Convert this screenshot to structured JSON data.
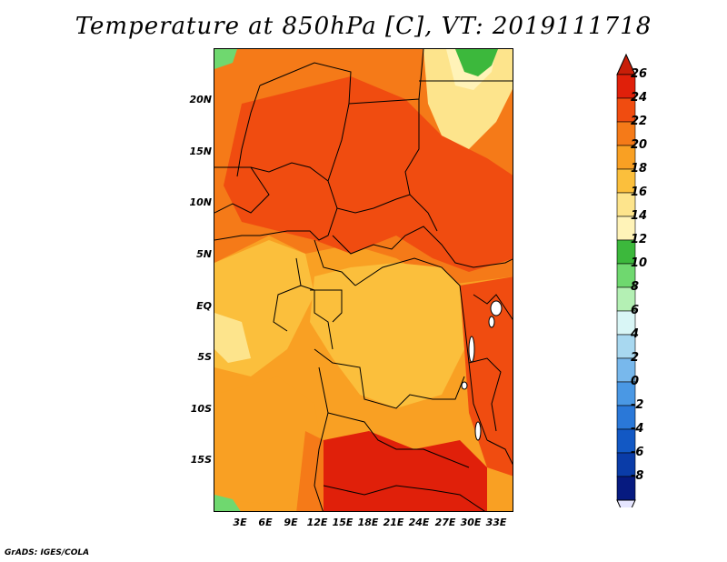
{
  "title": "Temperature at 850hPa [C], VT: 2019111718",
  "credit": "GrADS: IGES/COLA",
  "lat_labels": [
    "20N",
    "15N",
    "10N",
    "5N",
    "EQ",
    "5S",
    "10S",
    "15S"
  ],
  "lon_labels": [
    "3E",
    "6E",
    "9E",
    "12E",
    "15E",
    "18E",
    "21E",
    "24E",
    "27E",
    "30E",
    "33E"
  ],
  "colorbar": {
    "labels": [
      "26",
      "24",
      "22",
      "20",
      "18",
      "16",
      "14",
      "12",
      "10",
      "8",
      "6",
      "4",
      "2",
      "0",
      "-2",
      "-4",
      "-6",
      "-8"
    ],
    "colors": [
      "#e0200a",
      "#f04c10",
      "#f57a18",
      "#f9a023",
      "#fbbf3c",
      "#fde48c",
      "#fff3b8",
      "#3cb83c",
      "#6fd86f",
      "#b4f0b4",
      "#d9f6f6",
      "#a8d8f0",
      "#78b8ec",
      "#4a98e4",
      "#2a78d8",
      "#1258c4",
      "#0a3ca8",
      "#061a80"
    ],
    "top_color": "#c81e08",
    "bottom_color": "#e6e6ff"
  }
}
